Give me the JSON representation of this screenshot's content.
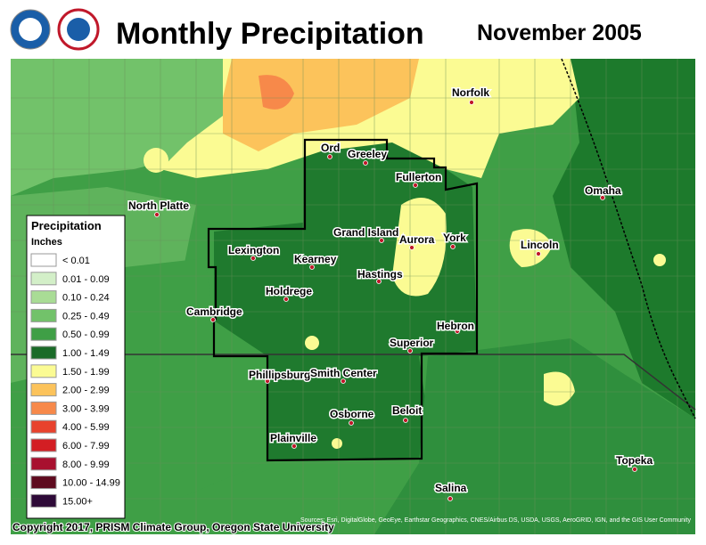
{
  "header": {
    "title": "Monthly Precipitation",
    "period": "November 2005"
  },
  "legend": {
    "title": "Precipitation",
    "units": "Inches",
    "items": [
      {
        "label": "< 0.01",
        "color": "#ffffff"
      },
      {
        "label": "0.01 - 0.09",
        "color": "#d3efc8"
      },
      {
        "label": "0.10 - 0.24",
        "color": "#a9dc95"
      },
      {
        "label": "0.25 - 0.49",
        "color": "#72c26a"
      },
      {
        "label": "0.50 - 0.99",
        "color": "#3f9f46"
      },
      {
        "label": "1.00 - 1.49",
        "color": "#1a6b28"
      },
      {
        "label": "1.50 - 1.99",
        "color": "#fbfb93"
      },
      {
        "label": "2.00 - 2.99",
        "color": "#fcc35b"
      },
      {
        "label": "3.00 - 3.99",
        "color": "#f7894a"
      },
      {
        "label": "4.00 - 5.99",
        "color": "#e8422d"
      },
      {
        "label": "6.00 - 7.99",
        "color": "#d31e23"
      },
      {
        "label": "8.00 - 9.99",
        "color": "#a8102f"
      },
      {
        "label": "10.00 - 14.99",
        "color": "#5e0a1e"
      },
      {
        "label": "15.00+",
        "color": "#2e0a38"
      }
    ]
  },
  "cities": [
    "Ord",
    "Greeley",
    "Fullerton",
    "Norfolk",
    "North Platte",
    "Omaha",
    "Grand Island",
    "Aurora",
    "York",
    "Lincoln",
    "Lexington",
    "Kearney",
    "Hastings",
    "Holdrege",
    "Cambridge",
    "Hebron",
    "Superior",
    "Phillipsburg",
    "Smith Center",
    "Osborne",
    "Beloit",
    "Plainville",
    "Topeka",
    "Salina"
  ],
  "footer": {
    "copyright": "Copyright 2017, PRISM Climate Group, Oregon State University",
    "sources": "Sources: Esri, DigitalGlobe, GeoEye, Earthstar Geographics, CNES/Airbus DS, USDA, USGS, AeroGRID, IGN, and the GIS User Community"
  }
}
